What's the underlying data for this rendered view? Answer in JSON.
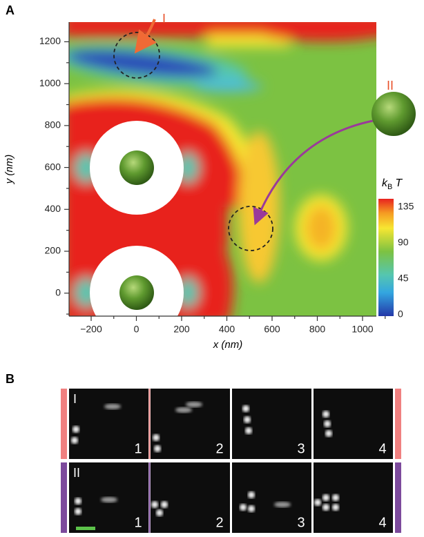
{
  "panel_a": {
    "label": "A",
    "x_axis": {
      "label": "x (nm)",
      "ticks": [
        "−200",
        "0",
        "200",
        "400",
        "600",
        "800",
        "1000"
      ]
    },
    "y_axis": {
      "label": "y (nm)",
      "ticks": [
        "1200",
        "1000",
        "800",
        "600",
        "400",
        "200",
        "0"
      ]
    },
    "colorbar": {
      "label": {
        "symbol": "k",
        "subscript": "B",
        "variable": "T"
      },
      "ticks": [
        "135",
        "90",
        "45",
        "0"
      ]
    },
    "annotations": [
      "I",
      "II"
    ]
  },
  "panel_b": {
    "label": "B",
    "rows": [
      {
        "label": "I",
        "frames": [
          "1",
          "2",
          "3",
          "4"
        ]
      },
      {
        "label": "II",
        "frames": [
          "1",
          "2",
          "3",
          "4"
        ]
      }
    ]
  }
}
